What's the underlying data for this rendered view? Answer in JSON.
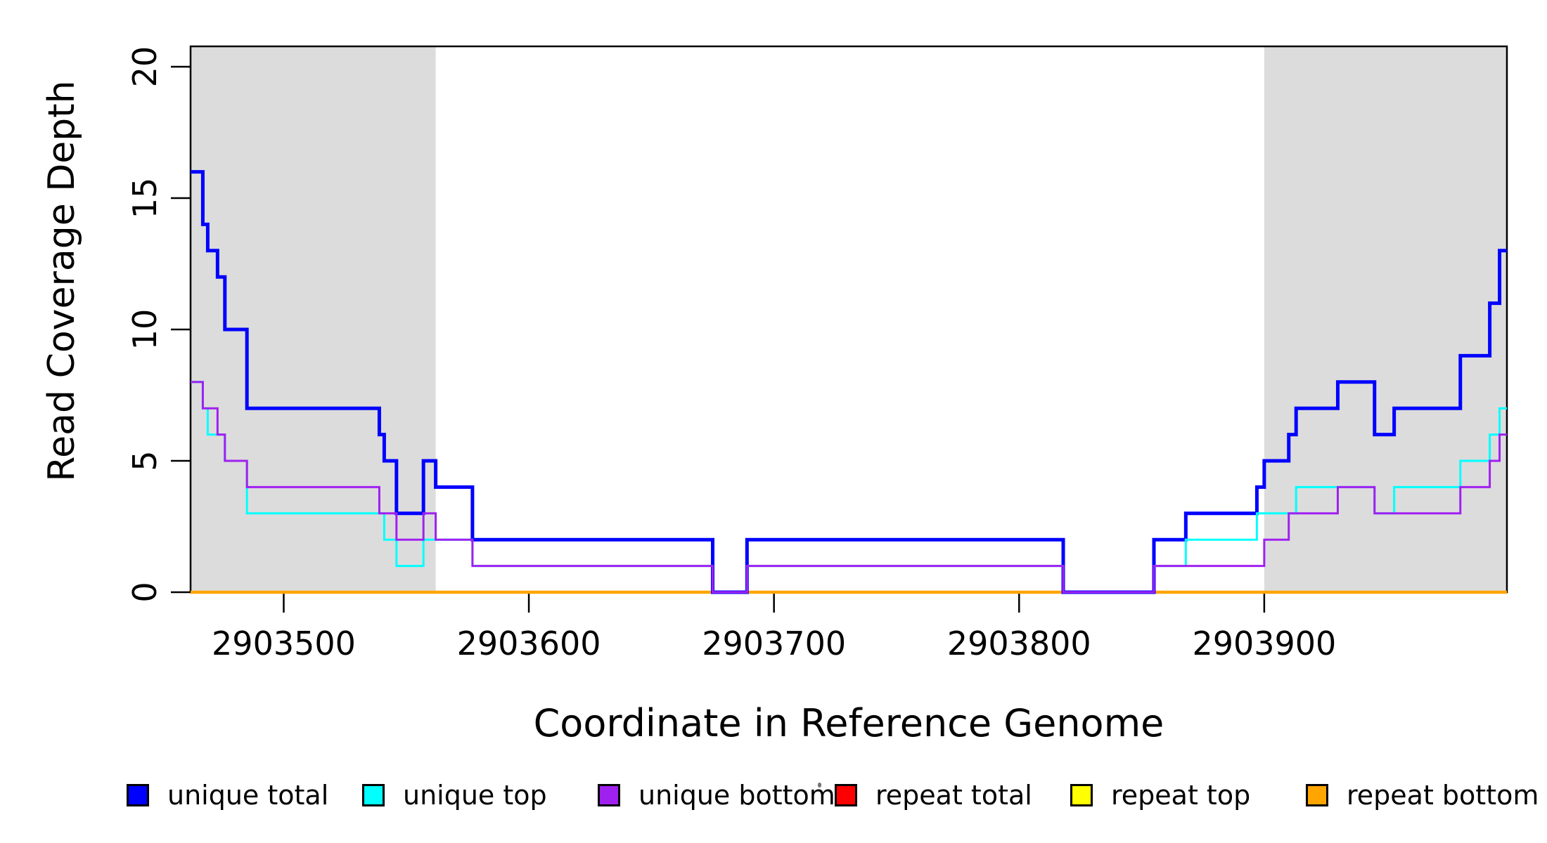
{
  "chart_data": {
    "type": "line",
    "subtype": "step-coverage",
    "title": "",
    "xlabel": "Coordinate in Reference Genome",
    "ylabel": "Read Coverage Depth",
    "xlim": [
      2903462,
      2903999
    ],
    "ylim": [
      0,
      20
    ],
    "grid": "off",
    "x_ticks": [
      {
        "value": 2903500,
        "label": "2903500"
      },
      {
        "value": 2903600,
        "label": "2903600"
      },
      {
        "value": 2903700,
        "label": "2903700"
      },
      {
        "value": 2903800,
        "label": "2903800"
      },
      {
        "value": 2903900,
        "label": "2903900"
      }
    ],
    "y_ticks": [
      {
        "value": 0,
        "label": "0"
      },
      {
        "value": 5,
        "label": "5"
      },
      {
        "value": 10,
        "label": "10"
      },
      {
        "value": 15,
        "label": "15"
      },
      {
        "value": 20,
        "label": "20"
      }
    ],
    "shaded_regions": [
      {
        "name": "repeat-masked-left",
        "x0": 2903462,
        "x1": 2903562,
        "color": "#DCDCDC"
      },
      {
        "name": "repeat-masked-right",
        "x0": 2903900,
        "x1": 2903999,
        "color": "#DCDCDC"
      }
    ],
    "series": [
      {
        "name": "repeat total",
        "color": "#FF0000",
        "line_width": 3,
        "steps": [
          [
            2903462,
            0
          ]
        ]
      },
      {
        "name": "repeat top",
        "color": "#FFFF00",
        "line_width": 3,
        "steps": [
          [
            2903462,
            0
          ]
        ]
      },
      {
        "name": "repeat bottom",
        "color": "#FFA500",
        "line_width": 4.5,
        "steps": [
          [
            2903462,
            0
          ]
        ]
      },
      {
        "name": "unique total",
        "color": "#0000FF",
        "line_width": 5,
        "steps": [
          [
            2903462,
            16
          ],
          [
            2903467,
            14
          ],
          [
            2903469,
            13
          ],
          [
            2903473,
            12
          ],
          [
            2903476,
            10
          ],
          [
            2903485,
            7
          ],
          [
            2903539,
            6
          ],
          [
            2903541,
            5
          ],
          [
            2903546,
            3
          ],
          [
            2903557,
            5
          ],
          [
            2903562,
            4
          ],
          [
            2903577,
            2
          ],
          [
            2903675,
            0
          ],
          [
            2903689,
            2
          ],
          [
            2903818,
            0
          ],
          [
            2903855,
            2
          ],
          [
            2903868,
            3
          ],
          [
            2903897,
            4
          ],
          [
            2903900,
            5
          ],
          [
            2903910,
            6
          ],
          [
            2903913,
            7
          ],
          [
            2903930,
            8
          ],
          [
            2903945,
            6
          ],
          [
            2903953,
            7
          ],
          [
            2903980,
            9
          ],
          [
            2903992,
            11
          ],
          [
            2903996,
            13
          ]
        ]
      },
      {
        "name": "unique top",
        "color": "#00FFFF",
        "line_width": 3,
        "steps": [
          [
            2903462,
            8
          ],
          [
            2903467,
            7
          ],
          [
            2903469,
            6
          ],
          [
            2903476,
            5
          ],
          [
            2903485,
            3
          ],
          [
            2903541,
            2
          ],
          [
            2903546,
            1
          ],
          [
            2903557,
            2
          ],
          [
            2903577,
            1
          ],
          [
            2903675,
            0
          ],
          [
            2903689,
            1
          ],
          [
            2903818,
            0
          ],
          [
            2903855,
            1
          ],
          [
            2903868,
            2
          ],
          [
            2903897,
            3
          ],
          [
            2903913,
            4
          ],
          [
            2903945,
            3
          ],
          [
            2903953,
            4
          ],
          [
            2903980,
            5
          ],
          [
            2903992,
            6
          ],
          [
            2903996,
            7
          ]
        ]
      },
      {
        "name": "unique bottom",
        "color": "#A020F0",
        "line_width": 3,
        "steps": [
          [
            2903462,
            8
          ],
          [
            2903467,
            7
          ],
          [
            2903473,
            6
          ],
          [
            2903476,
            5
          ],
          [
            2903485,
            4
          ],
          [
            2903539,
            3
          ],
          [
            2903546,
            2
          ],
          [
            2903557,
            3
          ],
          [
            2903562,
            2
          ],
          [
            2903577,
            1
          ],
          [
            2903675,
            0
          ],
          [
            2903689,
            1
          ],
          [
            2903818,
            0
          ],
          [
            2903855,
            1
          ],
          [
            2903900,
            2
          ],
          [
            2903910,
            3
          ],
          [
            2903930,
            4
          ],
          [
            2903945,
            3
          ],
          [
            2903980,
            4
          ],
          [
            2903992,
            5
          ],
          [
            2903996,
            6
          ]
        ]
      }
    ],
    "legend": {
      "position": "bottom",
      "items": [
        {
          "label": "unique total",
          "color": "#0000FF"
        },
        {
          "label": "unique top",
          "color": "#00FFFF"
        },
        {
          "label": "unique bottom",
          "color": "#A020F0"
        },
        {
          "label": "repeat total",
          "color": "#FF0000"
        },
        {
          "label": "repeat top",
          "color": "#FFFF00"
        },
        {
          "label": "repeat bottom",
          "color": "#FFA500"
        }
      ]
    },
    "colors": {
      "axis": "#000000",
      "background": "#FFFFFF",
      "shading": "#DCDCDC"
    }
  }
}
